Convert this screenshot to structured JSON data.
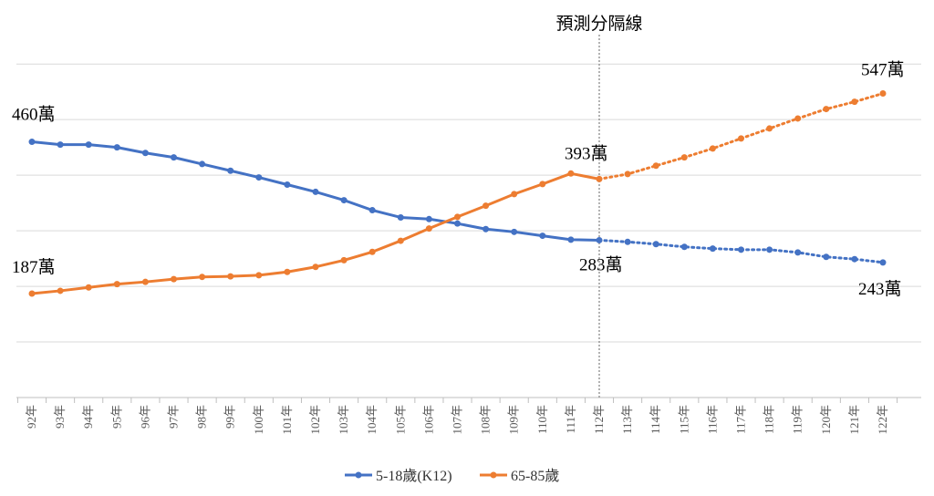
{
  "chart_data": {
    "type": "line",
    "categories": [
      "92年",
      "93年",
      "94年",
      "95年",
      "96年",
      "97年",
      "98年",
      "99年",
      "100年",
      "101年",
      "102年",
      "103年",
      "104年",
      "105年",
      "106年",
      "107年",
      "108年",
      "109年",
      "110年",
      "111年",
      "112年",
      "113年",
      "114年",
      "115年",
      "116年",
      "117年",
      "118年",
      "119年",
      "120年",
      "121年",
      "122年"
    ],
    "series": [
      {
        "name": "5-18歲(K12)",
        "color": "#4472c4",
        "solid_through": "112年",
        "values": [
          460,
          455,
          455,
          450,
          440,
          432,
          420,
          408,
          396,
          383,
          370,
          355,
          337,
          324,
          321,
          313,
          303,
          298,
          291,
          284,
          283,
          280,
          276,
          271,
          268,
          266,
          266,
          261,
          253,
          249,
          243
        ]
      },
      {
        "name": "65-85歲",
        "color": "#ed7d31",
        "solid_through": "112年",
        "values": [
          187,
          192,
          198,
          204,
          208,
          213,
          217,
          218,
          220,
          226,
          235,
          247,
          262,
          282,
          304,
          325,
          345,
          366,
          384,
          403,
          393,
          402,
          417,
          432,
          448,
          466,
          484,
          502,
          519,
          532,
          547
        ]
      }
    ],
    "ylim": [
      0,
      620
    ],
    "grid": true,
    "legend": "bottom-center",
    "divider": {
      "at": "112年",
      "label": "預測分隔線"
    },
    "annotations": [
      {
        "text": "460萬",
        "category": "92年",
        "series": "5-18歲(K12)"
      },
      {
        "text": "187萬",
        "category": "92年",
        "series": "65-85歲"
      },
      {
        "text": "393萬",
        "category": "112年",
        "series": "65-85歲"
      },
      {
        "text": "283萬",
        "category": "112年",
        "series": "5-18歲(K12)"
      },
      {
        "text": "547萬",
        "category": "122年",
        "series": "65-85歲"
      },
      {
        "text": "243萬",
        "category": "122年",
        "series": "5-18歲(K12)"
      }
    ]
  }
}
